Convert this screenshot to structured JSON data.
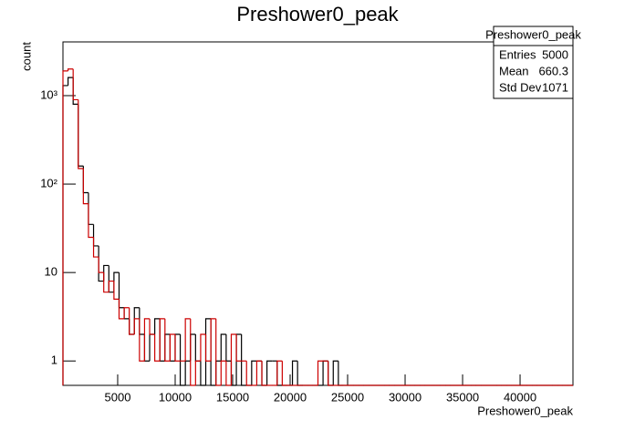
{
  "chart_data": {
    "type": "histogram",
    "title": "Preshower0_peak",
    "x_label": "Preshower0_peak",
    "y_label": "count",
    "log_y": true,
    "xlim": [
      240,
      44600
    ],
    "ylim": [
      0.53,
      4050
    ],
    "xticks": [
      5000,
      10000,
      15000,
      20000,
      25000,
      30000,
      35000,
      40000
    ],
    "yticks": [
      1,
      10,
      {
        "value": 100,
        "label": "10²"
      },
      {
        "value": 1000,
        "label": "10³"
      }
    ],
    "bins": [
      240,
      683.6,
      1127.2,
      1570.8,
      2014.4,
      2458,
      2901.6,
      3345.2,
      3788.8,
      4232.4,
      4676,
      5119.6,
      5563.2,
      6006.8,
      6450.4,
      6894,
      7337.6,
      7781.2,
      8224.8,
      8668.4,
      9112,
      9555.6,
      9999.2,
      10442.8,
      10886.4,
      11330,
      11773.6,
      12217.2,
      12660.8,
      13104.4,
      13548,
      13991.6,
      14435.2,
      14878.8,
      15322.4,
      15766,
      16209.6,
      16653.2,
      17096.8,
      17540.4,
      17984,
      18427.6,
      18871.2,
      19314.8,
      19758.4,
      20202,
      20645.6,
      21089.2,
      21532.8,
      21976.4,
      22420,
      22863.6,
      23307.2,
      23750.8,
      24194.4,
      24638,
      25081.6,
      25525.2,
      25968.8,
      26412.4,
      26856,
      27299.6,
      27743.2,
      28186.8,
      28630.4,
      29074,
      29517.6,
      29961.2,
      30404.8,
      30848.4,
      31292,
      31735.6,
      32179.2,
      32622.8,
      33066.4,
      33510,
      33953.6,
      34397.2,
      34840.8,
      35284.4,
      35728,
      36171.6,
      36615.2,
      37058.8,
      37502.4,
      37946,
      38389.6,
      38833.2,
      39276.8,
      39720.4,
      40164,
      40607.6,
      41051.2,
      41494.8,
      41938.4,
      42382,
      42825.6,
      43269.2,
      43712.8,
      44156.4,
      44600
    ],
    "series": [
      {
        "color": "#000000",
        "values": [
          1300,
          1600,
          800,
          160,
          80,
          35,
          20,
          8,
          12,
          6,
          10,
          4,
          3,
          2,
          4,
          2,
          1,
          2,
          3,
          1,
          2,
          1,
          2,
          0,
          1,
          2,
          1,
          0,
          3,
          0,
          1,
          2,
          1,
          0,
          2,
          0,
          0,
          1,
          1,
          0,
          1,
          1,
          0,
          0,
          0,
          1,
          0,
          0,
          0,
          0,
          0,
          1,
          0,
          1,
          0,
          0,
          0,
          0,
          0,
          0,
          0,
          0,
          0,
          0,
          0,
          0,
          0,
          0,
          0,
          0,
          0,
          0,
          0,
          0,
          0,
          0,
          0,
          0,
          0,
          0,
          0,
          0,
          0,
          0,
          0,
          0,
          0,
          0,
          0,
          0,
          0,
          0,
          0,
          0,
          0,
          0,
          0,
          0,
          0,
          0
        ]
      },
      {
        "color": "#cc0000",
        "values": [
          1900,
          2000,
          900,
          150,
          60,
          25,
          15,
          10,
          6,
          8,
          5,
          3,
          4,
          2,
          3,
          1,
          3,
          2,
          1,
          3,
          1,
          2,
          1,
          1,
          3,
          0,
          1,
          2,
          1,
          3,
          0,
          1,
          0,
          2,
          1,
          1,
          0,
          0,
          1,
          0,
          0,
          0,
          1,
          0,
          0,
          0,
          0,
          0,
          0,
          0,
          1,
          1,
          0,
          0,
          0,
          0,
          0,
          0,
          0,
          0,
          0,
          0,
          0,
          0,
          0,
          0,
          0,
          0,
          0,
          0,
          0,
          0,
          0,
          0,
          0,
          0,
          0,
          0,
          0,
          0,
          0,
          0,
          0,
          0,
          0,
          0,
          0,
          0,
          0,
          0,
          0,
          0,
          0,
          0,
          0,
          0,
          0,
          0,
          0,
          0
        ]
      }
    ],
    "stats": {
      "title": "Preshower0_peak",
      "rows": [
        [
          "Entries",
          "5000"
        ],
        [
          "Mean",
          "660.3"
        ],
        [
          "Std Dev",
          "1071"
        ]
      ]
    }
  }
}
